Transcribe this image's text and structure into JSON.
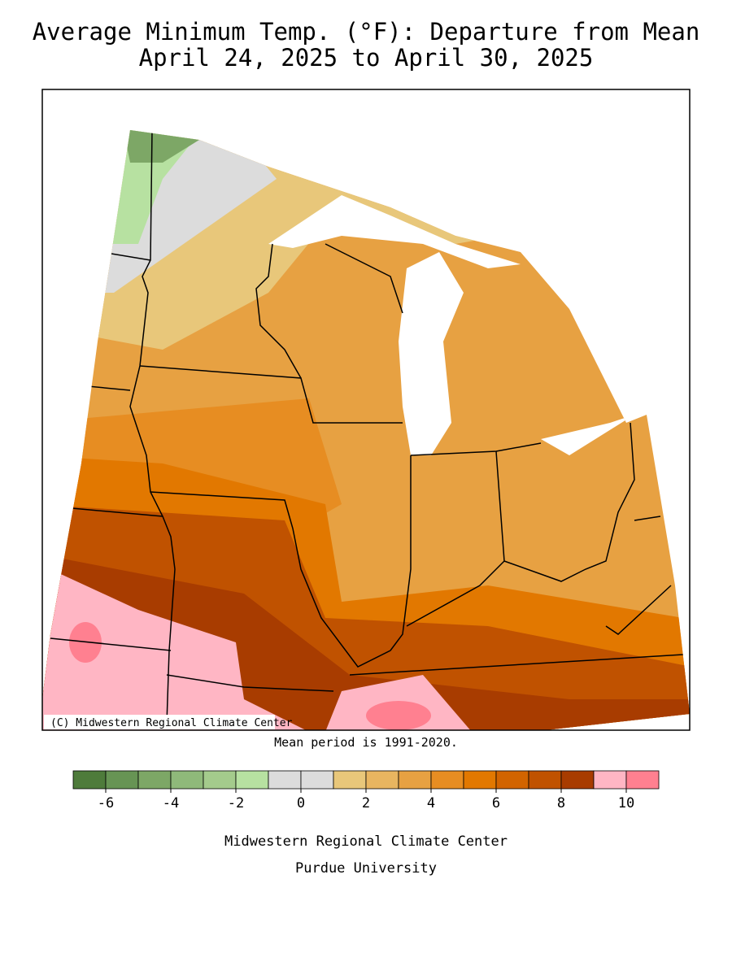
{
  "title": [
    "Average Minimum Temp. (°F): Departure from Mean",
    "April 24, 2025 to April 30, 2025"
  ],
  "map": {
    "credit": "(C) Midwestern Regional Climate Center"
  },
  "note": "Mean period is 1991-2020.",
  "legend": {
    "bins": [
      -7,
      -6,
      -5,
      -4,
      -3,
      -2,
      -1,
      0,
      1,
      2,
      3,
      4,
      5,
      6,
      7,
      8,
      9,
      10,
      11
    ],
    "colors": [
      "#4e7b3b",
      "#679454",
      "#7da766",
      "#8fb97a",
      "#a4cb8c",
      "#b7e1a1",
      "#dcdcdc",
      "#dcdcdc",
      "#e8c77a",
      "#e8b560",
      "#e7a142",
      "#e78d22",
      "#e27800",
      "#d26400",
      "#c05200",
      "#a83c00",
      "#ffb6c4",
      "#ff8090"
    ],
    "ticks": [
      -6,
      -4,
      -2,
      0,
      2,
      4,
      6,
      8,
      10
    ]
  },
  "footer": [
    "Midwestern Regional Climate Center",
    "Purdue University"
  ]
}
